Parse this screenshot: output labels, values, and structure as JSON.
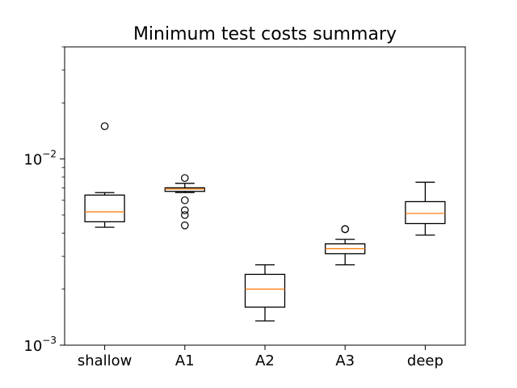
{
  "chart_data": {
    "type": "boxplot",
    "title": "Minimum test costs summary",
    "xlabel": "",
    "ylabel": "",
    "yscale": "log",
    "ylim": [
      0.001,
      0.04
    ],
    "y_major_ticks": [
      {
        "value": 0.001,
        "base": "10",
        "exp": "−3"
      },
      {
        "value": 0.01,
        "base": "10",
        "exp": "−2"
      }
    ],
    "y_minor_ticks": [
      0.002,
      0.003,
      0.004,
      0.005,
      0.006,
      0.007,
      0.008,
      0.009,
      0.02,
      0.03,
      0.04
    ],
    "categories": [
      "shallow",
      "A1",
      "A2",
      "A3",
      "deep"
    ],
    "boxes": [
      {
        "label": "shallow",
        "whisker_low": 0.0043,
        "q1": 0.0046,
        "median": 0.0052,
        "q3": 0.0064,
        "whisker_high": 0.0066,
        "fliers": [
          0.015
        ]
      },
      {
        "label": "A1",
        "whisker_low": 0.0066,
        "q1": 0.0067,
        "median": 0.0069,
        "q3": 0.007,
        "whisker_high": 0.0074,
        "fliers": [
          0.0079,
          0.006,
          0.0053,
          0.005,
          0.0044
        ]
      },
      {
        "label": "A2",
        "whisker_low": 0.00135,
        "q1": 0.0016,
        "median": 0.002,
        "q3": 0.0024,
        "whisker_high": 0.0027,
        "fliers": []
      },
      {
        "label": "A3",
        "whisker_low": 0.0027,
        "q1": 0.0031,
        "median": 0.0033,
        "q3": 0.0035,
        "whisker_high": 0.0037,
        "fliers": [
          0.0042,
          0.0042
        ]
      },
      {
        "label": "deep",
        "whisker_low": 0.0039,
        "q1": 0.0045,
        "median": 0.0051,
        "q3": 0.0059,
        "whisker_high": 0.0075,
        "fliers": []
      }
    ],
    "colors": {
      "box": "#000000",
      "median": "#ff7f0e",
      "flier": "#000000",
      "background": "#ffffff"
    },
    "grid": false,
    "legend": "none"
  }
}
